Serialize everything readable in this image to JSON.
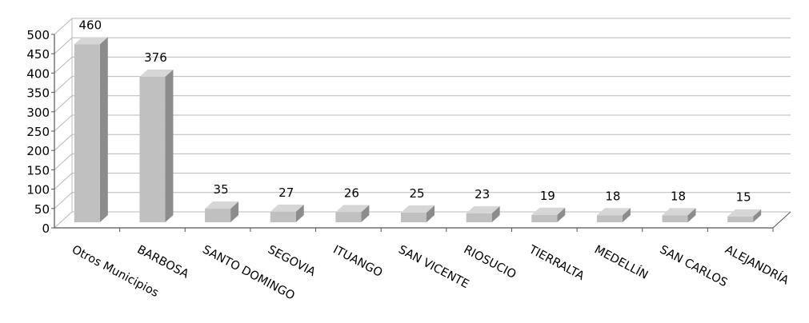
{
  "chart_data": {
    "type": "bar",
    "categories": [
      "Otros Municipios",
      "BARBOSA",
      "SANTO DOMINGO",
      "SEGOVIA",
      "ITUANGO",
      "SAN VICENTE",
      "RIOSUCIO",
      "TIERRALTA",
      "MEDELLÍN",
      "SAN CARLOS",
      "ALEJANDRÍA"
    ],
    "values": [
      460,
      376,
      35,
      27,
      26,
      25,
      23,
      19,
      18,
      18,
      15
    ],
    "data_labels": [
      "460",
      "376",
      "35",
      "27",
      "26",
      "25",
      "23",
      "19",
      "18",
      "18",
      "15"
    ],
    "title": "",
    "xlabel": "",
    "ylabel": "",
    "ylim": [
      0,
      500
    ],
    "y_ticks": [
      0,
      50,
      100,
      150,
      200,
      250,
      300,
      350,
      400,
      450,
      500
    ],
    "grid": true,
    "legend": "none",
    "style": "3d-column",
    "colors": {
      "bar_front": "#c0c0c0",
      "bar_top": "#d6d6d6",
      "bar_side": "#8c8c8c",
      "grid": "#b8b8b8",
      "axis": "#555555",
      "text": "#000000"
    }
  }
}
